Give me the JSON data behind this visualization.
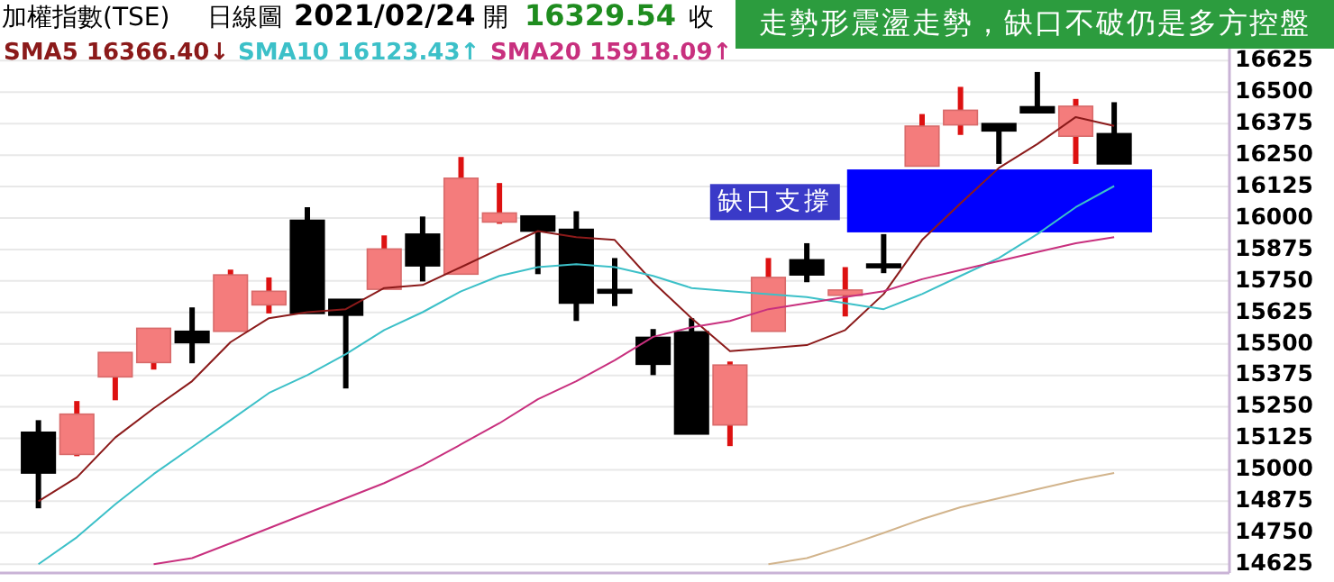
{
  "chart_data": {
    "type": "candlestick",
    "title": "加權指數(TSE)",
    "subtitle": "日線圖",
    "annotations": [
      "2021/02/24",
      "開",
      "16329.54",
      "收",
      "走勢形震盪走勢，缺口不破仍是多方控盤"
    ],
    "categories": [
      null,
      null,
      null,
      null,
      null,
      null,
      null,
      null,
      null,
      null,
      null,
      null,
      null,
      null,
      null,
      null,
      null,
      null,
      null,
      null,
      null,
      null,
      null,
      null,
      null,
      null,
      null,
      null,
      null
    ],
    "ohlc": [
      [
        15149,
        15197,
        14847,
        14987
      ],
      [
        15061,
        15273,
        15054,
        15221
      ],
      [
        15369,
        15466,
        15276,
        15466
      ],
      [
        15426,
        15562,
        15398,
        15562
      ],
      [
        15550,
        15645,
        15423,
        15505
      ],
      [
        15550,
        15795,
        15550,
        15774
      ],
      [
        15655,
        15764,
        15621,
        15709
      ],
      [
        15991,
        16043,
        15621,
        15621
      ],
      [
        15677,
        15677,
        15323,
        15614
      ],
      [
        15717,
        15931,
        15717,
        15877
      ],
      [
        15936,
        16006,
        15748,
        15810
      ],
      [
        15777,
        16242,
        15777,
        16158
      ],
      [
        15984,
        16139,
        15977,
        16020
      ],
      [
        16008,
        16008,
        15777,
        15948
      ],
      [
        15955,
        16027,
        15591,
        15662
      ],
      [
        15712,
        15841,
        15650,
        15706
      ],
      [
        15526,
        15559,
        15376,
        15419
      ],
      [
        15548,
        15602,
        15142,
        15142
      ],
      [
        15178,
        15430,
        15094,
        15416
      ],
      [
        15550,
        15841,
        15550,
        15764
      ],
      [
        15834,
        15900,
        15745,
        15774
      ],
      [
        15693,
        15805,
        15609,
        15714
      ],
      [
        15815,
        15936,
        15781,
        15805
      ],
      [
        16206,
        16413,
        16206,
        16365
      ],
      [
        16370,
        16521,
        16330,
        16428
      ],
      [
        16375,
        16375,
        16215,
        16346
      ],
      [
        16442,
        16580,
        16418,
        16418
      ],
      [
        16325,
        16473,
        16215,
        16444
      ],
      [
        16335,
        16460,
        16215,
        16215
      ]
    ],
    "series": [
      {
        "type": "line",
        "name": "SMA5 16366.40↓",
        "color": "#8b1a1a",
        "values": [
          14875,
          14970,
          15128,
          15244,
          15352,
          15507,
          15602,
          15626,
          15638,
          15722,
          15734,
          15805,
          15877,
          15948,
          15924,
          15913,
          15745,
          15602,
          15471,
          15483,
          15495,
          15555,
          15698,
          15913,
          16058,
          16199,
          16294,
          16401,
          16366
        ]
      },
      {
        "type": "line",
        "name": "SMA10 16123.43↑",
        "color": "#3cc0c8",
        "values": [
          14625,
          14732,
          14863,
          14983,
          15090,
          15197,
          15305,
          15376,
          15459,
          15555,
          15626,
          15709,
          15770,
          15805,
          15817,
          15805,
          15770,
          15722,
          15709,
          15698,
          15686,
          15662,
          15638,
          15698,
          15770,
          15841,
          15936,
          16043,
          16127
        ]
      },
      {
        "type": "line",
        "name": "SMA20 15918.09↑",
        "color": "#c8307e",
        "values": [
          null,
          null,
          null,
          14625,
          14649,
          14708,
          14768,
          14828,
          14887,
          14947,
          15018,
          15101,
          15185,
          15280,
          15352,
          15435,
          15528,
          15566,
          15591,
          15638,
          15662,
          15686,
          15709,
          15757,
          15793,
          15829,
          15865,
          15900,
          15924
        ]
      },
      {
        "type": "line",
        "color": "#d2b48c",
        "values": [
          null,
          null,
          null,
          null,
          null,
          null,
          null,
          null,
          null,
          null,
          null,
          null,
          null,
          null,
          null,
          null,
          null,
          null,
          null,
          14625,
          14649,
          14697,
          14749,
          14804,
          14851,
          14887,
          14923,
          14958,
          14987
        ]
      }
    ],
    "bands": [
      {
        "axis": "y",
        "from": 15943,
        "to": 16193,
        "label": "缺口支撐",
        "color": "#0000ff"
      }
    ],
    "ylim": [
      14590,
      16720
    ],
    "yticks": [
      14625,
      14750,
      14875,
      15000,
      15125,
      15250,
      15375,
      15500,
      15625,
      15750,
      15875,
      16000,
      16125,
      16250,
      16375,
      16500,
      16625
    ],
    "grid": "y",
    "legend": "top left",
    "tick_labels": "y"
  }
}
